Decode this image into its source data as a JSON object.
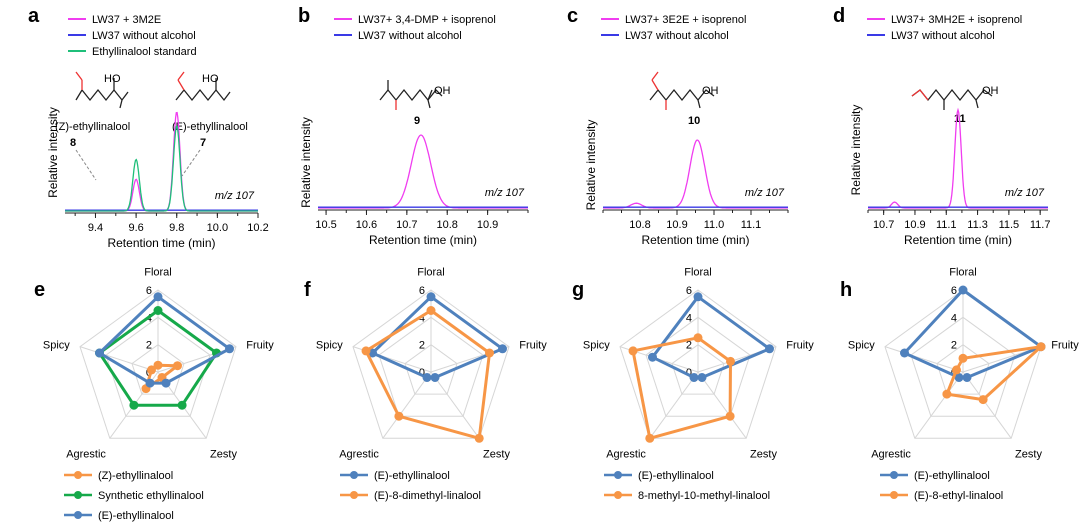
{
  "colors": {
    "magenta": "#f03df0",
    "blue": "#3a3ae6",
    "green": "#1fbf7a",
    "radar_blue": "#4f81bd",
    "radar_orange": "#f79646",
    "radar_green": "#16a94a",
    "grid": "#d6d6d6"
  },
  "chart_data": [
    {
      "panel": "a",
      "type": "line",
      "xlabel": "Retention time (min)",
      "ylabel": "Relative intensity",
      "annotation": "m/z 107",
      "xlim": [
        9.25,
        10.2
      ],
      "ylim": [
        0,
        100
      ],
      "xticks": [
        "9.4",
        "9.6",
        "9.8",
        "10.0",
        "10.2"
      ],
      "xtick_values": [
        9.4,
        9.6,
        9.8,
        10.0,
        10.2
      ],
      "series": [
        {
          "name": "LW37 + 3M2E",
          "color": "#f03df0",
          "peaks": [
            [
              9.6,
              32,
              0.016
            ],
            [
              9.8,
              100,
              0.016
            ]
          ]
        },
        {
          "name": "LW37 without alcohol",
          "color": "#3a3ae6",
          "peaks": []
        },
        {
          "name": "Ethyllinalool standard",
          "color": "#1fbf7a",
          "peaks": [
            [
              9.6,
              52,
              0.016
            ],
            [
              9.8,
              86,
              0.016
            ]
          ]
        }
      ],
      "compound_labels": [
        {
          "name": "(Z)-ethyllinalool",
          "number": "8"
        },
        {
          "name": "(E)-ethyllinalool",
          "number": "7"
        }
      ]
    },
    {
      "panel": "b",
      "type": "line",
      "xlabel": "Retention time (min)",
      "ylabel": "Relative intensity",
      "annotation": "m/z 107",
      "xlim": [
        10.48,
        11.0
      ],
      "ylim": [
        0,
        100
      ],
      "xticks": [
        "10.5",
        "10.6",
        "10.7",
        "10.8",
        "10.9"
      ],
      "xtick_values": [
        10.5,
        10.6,
        10.7,
        10.8,
        10.9
      ],
      "series": [
        {
          "name": "LW37+ 3,4-DMP + isoprenol",
          "color": "#f03df0",
          "peaks": [
            [
              10.735,
              100,
              0.024
            ]
          ]
        },
        {
          "name": "LW37 without alcohol",
          "color": "#3a3ae6",
          "peaks": []
        }
      ],
      "compound_labels": [
        {
          "name": "",
          "number": "9"
        }
      ]
    },
    {
      "panel": "c",
      "type": "line",
      "xlabel": "Retention time (min)",
      "ylabel": "Relative intensity",
      "annotation": "m/z 107",
      "xlim": [
        10.7,
        11.2
      ],
      "ylim": [
        0,
        100
      ],
      "xticks": [
        "10.8",
        "10.9",
        "11.0",
        "11.1"
      ],
      "xtick_values": [
        10.8,
        10.9,
        11.0,
        11.1
      ],
      "series": [
        {
          "name": "LW37+ 3E2E + isoprenol",
          "color": "#f03df0",
          "peaks": [
            [
              10.955,
              100,
              0.02
            ],
            [
              10.79,
              7,
              0.015
            ]
          ]
        },
        {
          "name": "LW37 without alcohol",
          "color": "#3a3ae6",
          "peaks": []
        }
      ],
      "compound_labels": [
        {
          "name": "",
          "number": "10"
        }
      ]
    },
    {
      "panel": "d",
      "type": "line",
      "xlabel": "Retention time (min)",
      "ylabel": "Relative intensity",
      "annotation": "m/z 107",
      "xlim": [
        10.6,
        11.75
      ],
      "ylim": [
        0,
        100
      ],
      "xticks": [
        "10.7",
        "10.9",
        "11.1",
        "11.3",
        "11.5",
        "11.7"
      ],
      "xtick_values": [
        10.7,
        10.9,
        11.1,
        11.3,
        11.5,
        11.7
      ],
      "series": [
        {
          "name": "LW37+ 3MH2E + isoprenol",
          "color": "#f03df0",
          "peaks": [
            [
              11.175,
              100,
              0.02
            ],
            [
              10.77,
              6,
              0.02
            ]
          ]
        },
        {
          "name": "LW37 without alcohol",
          "color": "#3a3ae6",
          "peaks": []
        }
      ],
      "compound_labels": [
        {
          "name": "",
          "number": "11"
        }
      ]
    },
    {
      "panel": "e",
      "type": "radar",
      "axes": [
        "Floral",
        "Fruity",
        "Zesty",
        "Agrestic",
        "Spicy"
      ],
      "rlim": [
        0,
        6
      ],
      "rticks": [
        "0",
        "2",
        "4",
        "6"
      ],
      "series": [
        {
          "name": "(Z)-ethyllinalool",
          "color": "#f79646",
          "values": [
            0.5,
            1.5,
            0.5,
            1.5,
            0.5
          ]
        },
        {
          "name": "Synthetic ethyllinalool",
          "color": "#16a94a",
          "values": [
            4.5,
            4.5,
            3.0,
            3.0,
            4.5
          ]
        },
        {
          "name": "(E)-ethyllinalool",
          "color": "#4f81bd",
          "values": [
            5.5,
            5.5,
            1.0,
            1.0,
            4.5
          ]
        }
      ]
    },
    {
      "panel": "f",
      "type": "radar",
      "axes": [
        "Floral",
        "Fruity",
        "Zesty",
        "Agrestic",
        "Spicy"
      ],
      "rlim": [
        0,
        6
      ],
      "rticks": [
        "0",
        "2",
        "4",
        "6"
      ],
      "series": [
        {
          "name": "(E)-ethyllinalool",
          "color": "#4f81bd",
          "values": [
            5.5,
            5.5,
            0.5,
            0.5,
            4.5
          ]
        },
        {
          "name": "(E)-8-dimethyl-linalool",
          "color": "#f79646",
          "values": [
            4.5,
            4.5,
            6.0,
            4.0,
            5.0
          ]
        }
      ]
    },
    {
      "panel": "g",
      "type": "radar",
      "axes": [
        "Floral",
        "Fruity",
        "Zesty",
        "Agrestic",
        "Spicy"
      ],
      "rlim": [
        0,
        6
      ],
      "rticks": [
        "0",
        "2",
        "4",
        "6"
      ],
      "series": [
        {
          "name": "(E)-ethyllinalool",
          "color": "#4f81bd",
          "values": [
            5.5,
            5.5,
            0.5,
            0.5,
            3.5
          ]
        },
        {
          "name": "8-methyl-10-methyl-linalool",
          "color": "#f79646",
          "values": [
            2.5,
            2.5,
            4.0,
            6.0,
            5.0
          ]
        }
      ]
    },
    {
      "panel": "h",
      "type": "radar",
      "axes": [
        "Floral",
        "Fruity",
        "Zesty",
        "Agrestic",
        "Spicy"
      ],
      "rlim": [
        0,
        6
      ],
      "rticks": [
        "0",
        "2",
        "4",
        "6"
      ],
      "series": [
        {
          "name": "(E)-ethyllinalool",
          "color": "#4f81bd",
          "values": [
            6.0,
            6.0,
            0.5,
            0.5,
            4.5
          ]
        },
        {
          "name": "(E)-8-ethyl-linalool",
          "color": "#f79646",
          "values": [
            1.0,
            6.0,
            2.5,
            2.0,
            0.5
          ]
        }
      ]
    }
  ]
}
